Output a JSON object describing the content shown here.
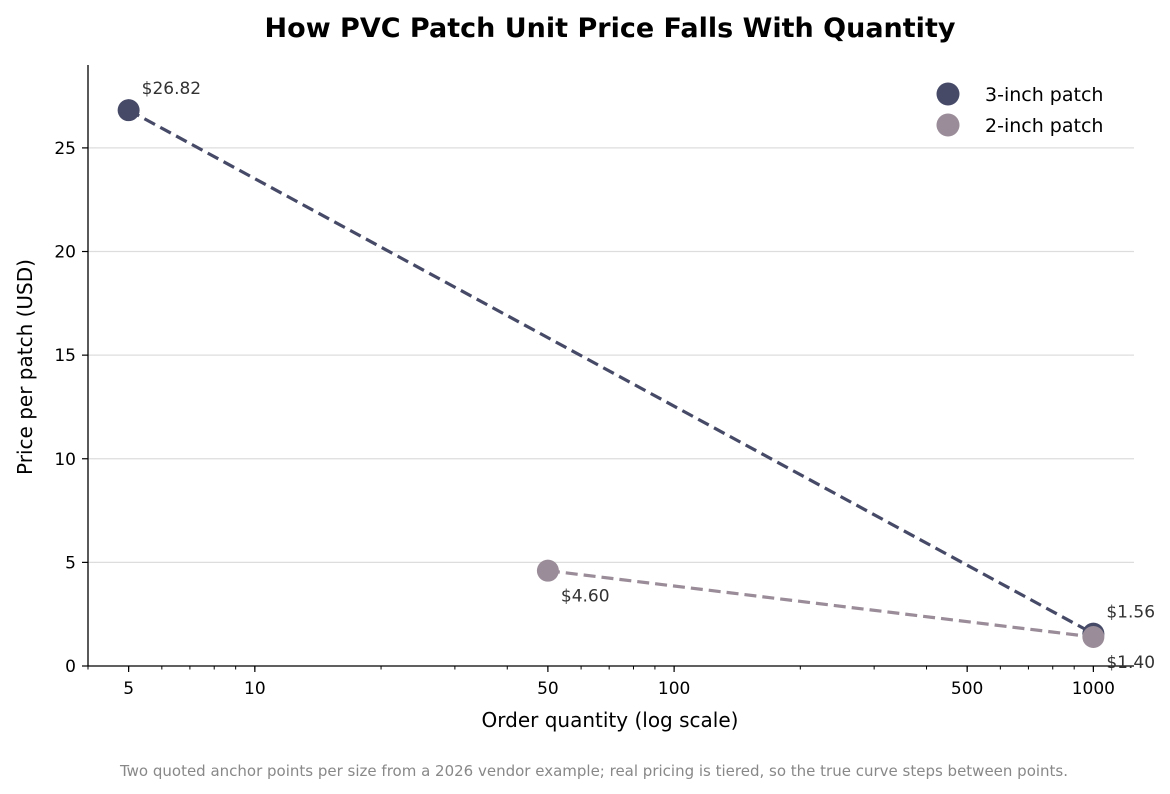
{
  "chart_data": {
    "type": "line",
    "title": "How PVC Patch Unit Price Falls With Quantity",
    "xlabel": "Order quantity (log scale)",
    "ylabel": "Price per patch (USD)",
    "x_scale": "log",
    "xlim": [
      4,
      1250
    ],
    "ylim": [
      0,
      29
    ],
    "x_ticks": [
      5,
      10,
      50,
      100,
      500,
      1000
    ],
    "y_ticks": [
      0,
      5,
      10,
      15,
      20,
      25
    ],
    "grid": "horizontal",
    "legend_position": "top-right",
    "series": [
      {
        "name": "3-inch patch",
        "color": "#464a67",
        "line_style": "dashed",
        "points": [
          {
            "x": 5,
            "y": 26.82,
            "label": "$26.82"
          },
          {
            "x": 1000,
            "y": 1.56,
            "label": "$1.56"
          }
        ]
      },
      {
        "name": "2-inch patch",
        "color": "#9a8c98",
        "line_style": "dashed",
        "points": [
          {
            "x": 50,
            "y": 4.6,
            "label": "$4.60"
          },
          {
            "x": 1000,
            "y": 1.4,
            "label": "$1.40"
          }
        ]
      }
    ],
    "footnote": "Two quoted anchor points per size from a 2026 vendor example; real pricing is tiered, so the true curve steps between points."
  }
}
